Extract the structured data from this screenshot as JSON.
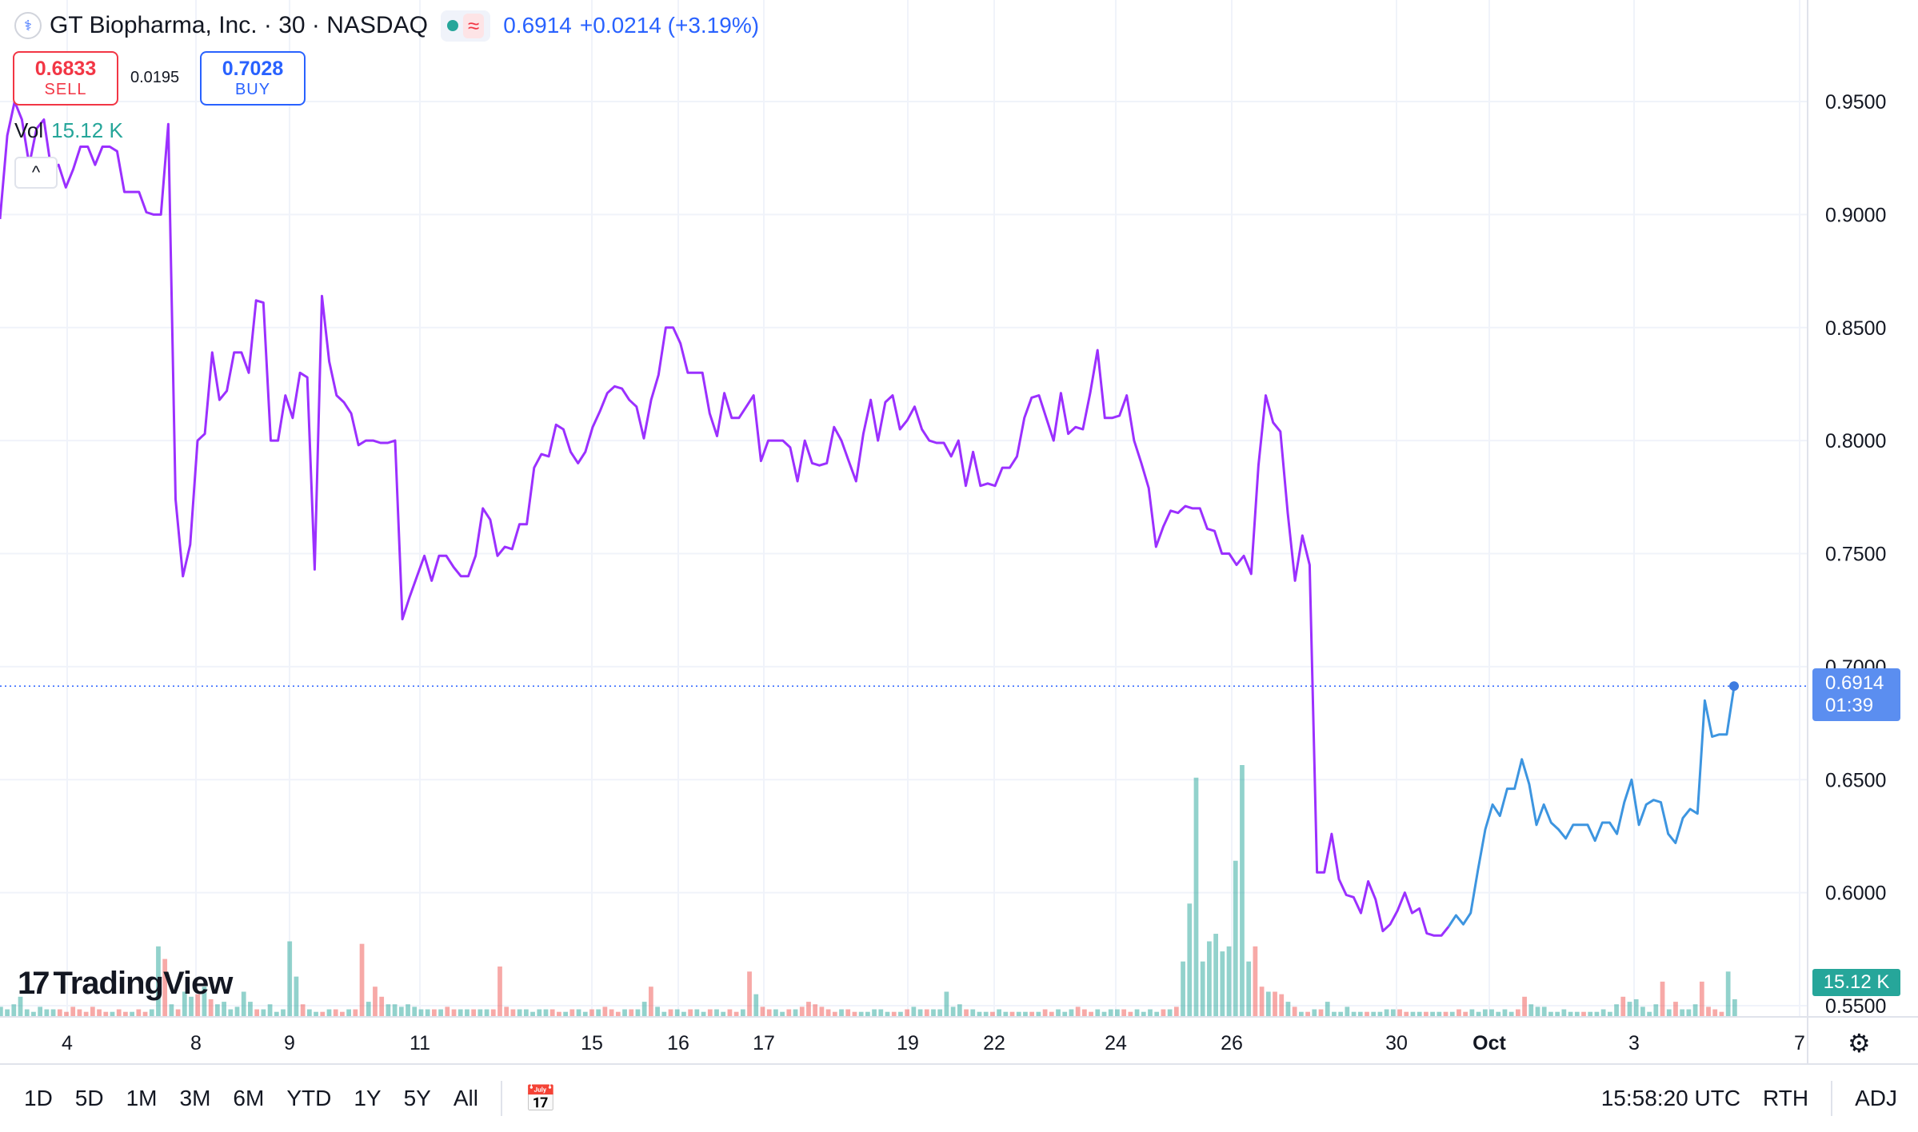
{
  "header": {
    "title": "GT Biopharma, Inc. · 30 · NASDAQ",
    "last_price": "0.6914",
    "change": "+0.0214 (+3.19%)",
    "approx_symbol": "≈"
  },
  "trade": {
    "sell_price": "0.6833",
    "sell_label": "SELL",
    "spread": "0.0195",
    "buy_price": "0.7028",
    "buy_label": "BUY"
  },
  "volume_legend": {
    "label": "Vol",
    "value": "15.12 K"
  },
  "collapse_icon": "^",
  "branding": {
    "name": "TradingView",
    "mark": "17"
  },
  "price_badge": {
    "price": "0.6914",
    "countdown": "01:39"
  },
  "volume_badge": "15.12 K",
  "toolbar": {
    "ranges": [
      "1D",
      "5D",
      "1M",
      "3M",
      "6M",
      "YTD",
      "1Y",
      "5Y",
      "All"
    ],
    "time": "15:58:20 UTC",
    "session": "RTH",
    "adj": "ADJ"
  },
  "colors": {
    "line_purple": "#9b30ff",
    "line_blue": "#3d95e0",
    "up_volume": "#26a69a",
    "down_volume": "#ef5350",
    "accent": "#2962ff"
  },
  "chart_data": {
    "type": "line",
    "ylim": [
      0.535,
      0.99
    ],
    "yticks": [
      "0.9500",
      "0.9000",
      "0.8500",
      "0.8000",
      "0.7500",
      "0.7000",
      "0.6500",
      "0.6000",
      "0.5500"
    ],
    "x_labels": [
      "4",
      "8",
      "9",
      "11",
      "15",
      "16",
      "17",
      "19",
      "22",
      "24",
      "26",
      "30",
      "Oct",
      "3",
      "7"
    ],
    "grid": true,
    "price_series": [
      0.898,
      0.935,
      0.95,
      0.942,
      0.922,
      0.938,
      0.942,
      0.92,
      0.922,
      0.912,
      0.92,
      0.93,
      0.93,
      0.922,
      0.93,
      0.93,
      0.928,
      0.91,
      0.91,
      0.91,
      0.901,
      0.9,
      0.9,
      0.94,
      0.774,
      0.74,
      0.754,
      0.8,
      0.803,
      0.839,
      0.818,
      0.822,
      0.839,
      0.839,
      0.83,
      0.862,
      0.861,
      0.8,
      0.8,
      0.82,
      0.81,
      0.83,
      0.828,
      0.743,
      0.864,
      0.835,
      0.82,
      0.817,
      0.812,
      0.798,
      0.8,
      0.8,
      0.799,
      0.799,
      0.8,
      0.721,
      0.731,
      0.74,
      0.749,
      0.738,
      0.749,
      0.749,
      0.744,
      0.74,
      0.74,
      0.749,
      0.77,
      0.765,
      0.749,
      0.753,
      0.752,
      0.763,
      0.763,
      0.788,
      0.794,
      0.793,
      0.807,
      0.805,
      0.795,
      0.79,
      0.795,
      0.806,
      0.813,
      0.821,
      0.824,
      0.823,
      0.818,
      0.815,
      0.801,
      0.818,
      0.829,
      0.85,
      0.85,
      0.843,
      0.83,
      0.83,
      0.83,
      0.812,
      0.802,
      0.821,
      0.81,
      0.81,
      0.815,
      0.82,
      0.791,
      0.8,
      0.8,
      0.8,
      0.797,
      0.782,
      0.8,
      0.79,
      0.789,
      0.79,
      0.806,
      0.8,
      0.791,
      0.782,
      0.803,
      0.818,
      0.8,
      0.817,
      0.82,
      0.805,
      0.809,
      0.815,
      0.805,
      0.8,
      0.799,
      0.799,
      0.793,
      0.8,
      0.78,
      0.795,
      0.78,
      0.781,
      0.78,
      0.788,
      0.788,
      0.793,
      0.81,
      0.819,
      0.82,
      0.81,
      0.8,
      0.821,
      0.803,
      0.806,
      0.805,
      0.821,
      0.84,
      0.81,
      0.81,
      0.811,
      0.82,
      0.8,
      0.79,
      0.779,
      0.753,
      0.762,
      0.769,
      0.768,
      0.771,
      0.77,
      0.77,
      0.761,
      0.76,
      0.75,
      0.75,
      0.745,
      0.749,
      0.741,
      0.789,
      0.82,
      0.808,
      0.804,
      0.768,
      0.738,
      0.758,
      0.745,
      0.609,
      0.609,
      0.626,
      0.606,
      0.599,
      0.598,
      0.591,
      0.605,
      0.597,
      0.583,
      0.586,
      0.592,
      0.6,
      0.591,
      0.593,
      0.582,
      0.581,
      0.581,
      0.585,
      0.59,
      0.586,
      0.591,
      0.61,
      0.628,
      0.639,
      0.634,
      0.646,
      0.646,
      0.659,
      0.648,
      0.63,
      0.639,
      0.631,
      0.628,
      0.624,
      0.63,
      0.63,
      0.63,
      0.623,
      0.631,
      0.631,
      0.626,
      0.64,
      0.65,
      0.63,
      0.639,
      0.641,
      0.64,
      0.626,
      0.622,
      0.633,
      0.637,
      0.635,
      0.685,
      0.669,
      0.67,
      0.67,
      0.691
    ],
    "price_split_index": 198,
    "last_price": 0.6914,
    "volume_max_units": 100,
    "volume_series": [
      4,
      3,
      5,
      8,
      3,
      2,
      4,
      3,
      3,
      3,
      2,
      4,
      3,
      2,
      4,
      3,
      2,
      2,
      3,
      2,
      2,
      3,
      2,
      3,
      28,
      23,
      5,
      3,
      10,
      8,
      9,
      12,
      7,
      5,
      6,
      3,
      4,
      10,
      6,
      3,
      3,
      5,
      2,
      3,
      30,
      16,
      5,
      3,
      2,
      2,
      3,
      3,
      2,
      3,
      3,
      29,
      6,
      12,
      8,
      5,
      5,
      4,
      5,
      4,
      3,
      3,
      3,
      3,
      4,
      3,
      3,
      3,
      3,
      3,
      3,
      3,
      20,
      4,
      3,
      3,
      3,
      2,
      3,
      3,
      3,
      2,
      2,
      3,
      3,
      2,
      3,
      3,
      4,
      3,
      2,
      3,
      3,
      3,
      6,
      12,
      4,
      2,
      3,
      3,
      2,
      3,
      3,
      2,
      3,
      3,
      2,
      3,
      2,
      3,
      18,
      9,
      4,
      3,
      3,
      2,
      3,
      3,
      4,
      6,
      5,
      4,
      3,
      2,
      3,
      3,
      2,
      2,
      2,
      3,
      3,
      2,
      2,
      2,
      3,
      4,
      3,
      3,
      3,
      3,
      10,
      4,
      5,
      3,
      3,
      2,
      2,
      2,
      3,
      2,
      2,
      2,
      2,
      2,
      2,
      3,
      2,
      3,
      2,
      3,
      4,
      3,
      2,
      3,
      2,
      3,
      3,
      3,
      2,
      3,
      2,
      3,
      2,
      3,
      3,
      4,
      22,
      45,
      95,
      22,
      30,
      33,
      26,
      28,
      62,
      100,
      22,
      28,
      12,
      10,
      10,
      9,
      6,
      4,
      2,
      2,
      3,
      3,
      6,
      2,
      2,
      4,
      2,
      2,
      2,
      2,
      2,
      3,
      3,
      3,
      2,
      2,
      2,
      2,
      2,
      2,
      2,
      2,
      3,
      2,
      3,
      2,
      3,
      3,
      2,
      3,
      2,
      3,
      8,
      5,
      4,
      4,
      2,
      2,
      3,
      2,
      2,
      2,
      2,
      2,
      3,
      2,
      5,
      8,
      6,
      7,
      4,
      2,
      5,
      14,
      3,
      6,
      3,
      3,
      5,
      14,
      4,
      3,
      2,
      18,
      7
    ]
  }
}
